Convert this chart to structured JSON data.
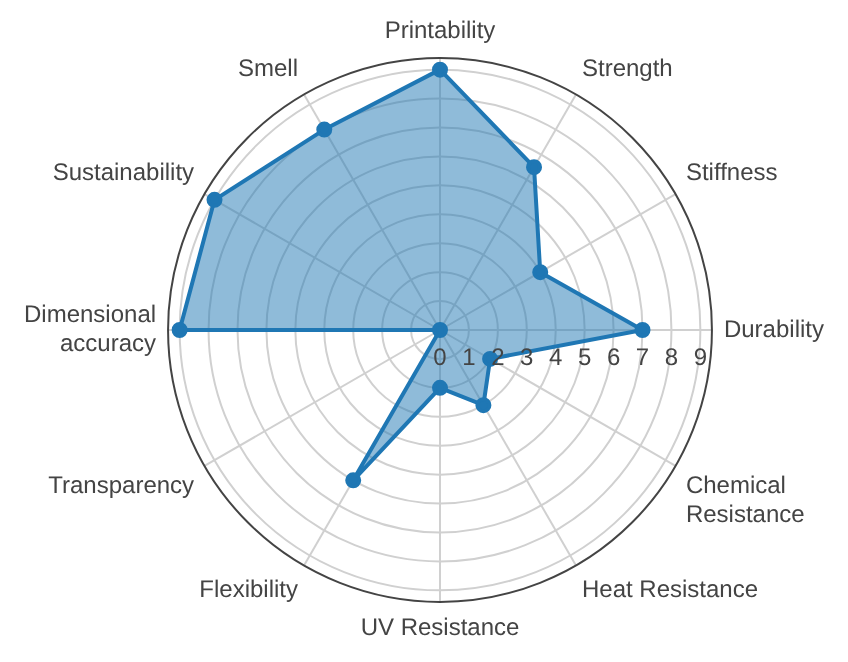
{
  "chart_data": {
    "type": "radar",
    "categories": [
      "Printability",
      "Strength",
      "Stiffness",
      "Durability",
      "Chemical Resistance",
      "Heat Resistance",
      "UV Resistance",
      "Flexibility",
      "Transparency",
      "Dimensional accuracy",
      "Sustainability",
      "Smell"
    ],
    "series": [
      {
        "color": "#1f77b4",
        "values": [
          9,
          6.5,
          4,
          7,
          2,
          3,
          2,
          6,
          0,
          9,
          9,
          8
        ]
      }
    ],
    "ylim": [
      0,
      9.4
    ],
    "yticks": [
      0,
      1,
      2,
      3,
      4,
      5,
      6,
      7,
      8,
      9
    ],
    "grid": true,
    "legend": false,
    "marker": "circle"
  }
}
